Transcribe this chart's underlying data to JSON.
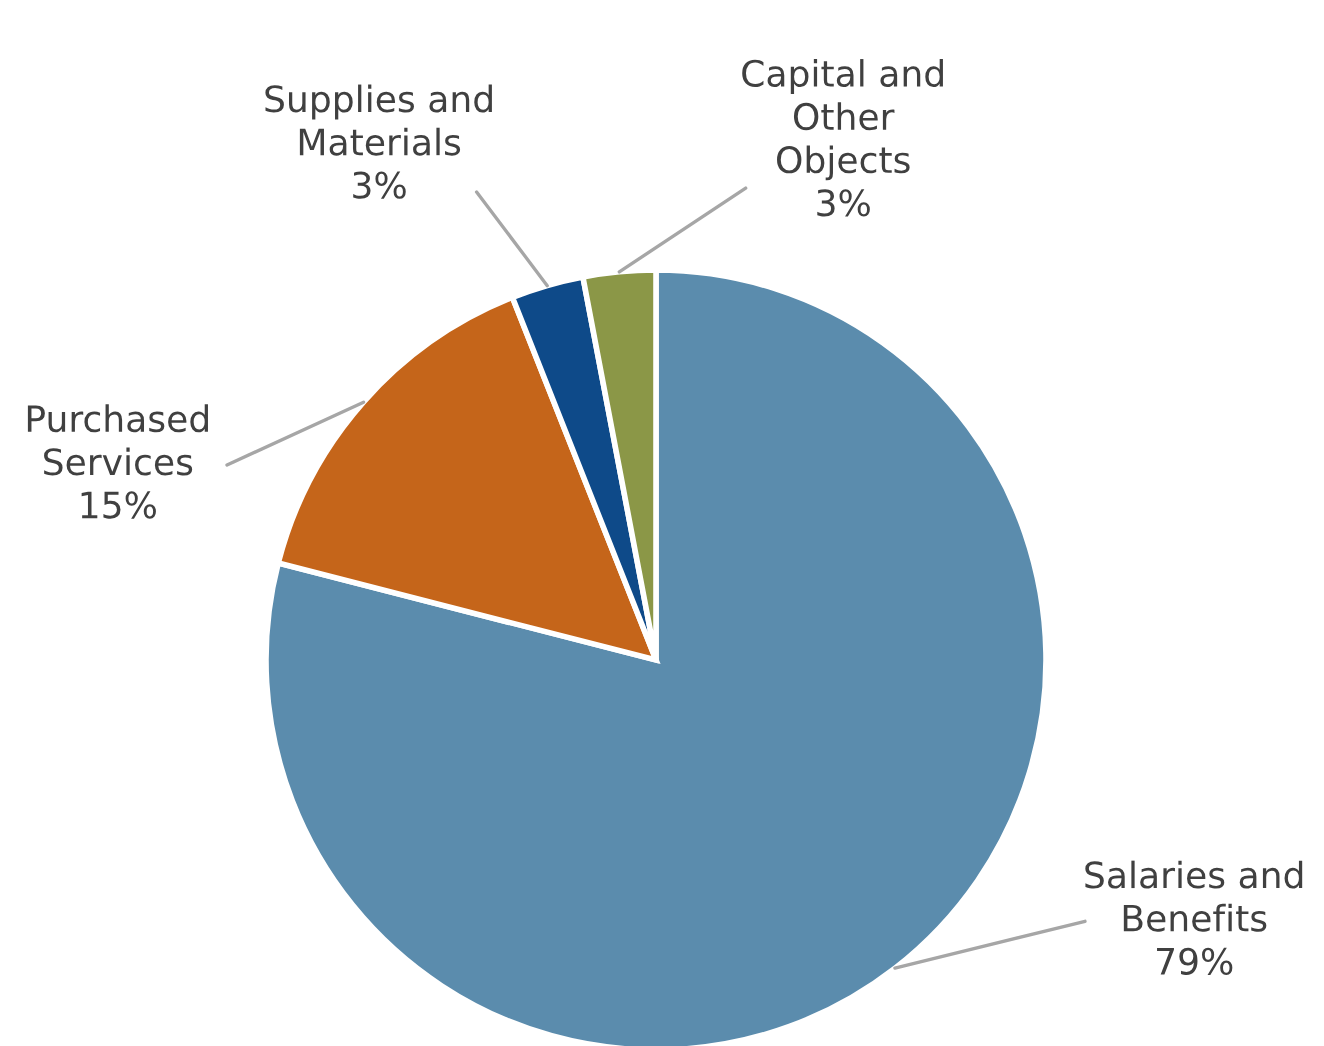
{
  "chart_data": {
    "type": "pie",
    "categories": [
      "Salaries and\nBenefits",
      "Purchased\nServices",
      "Supplies and\nMaterials",
      "Capital and\nOther\nObjects"
    ],
    "values": [
      79,
      15,
      3,
      3
    ],
    "value_labels": [
      "79%",
      "15%",
      "3%",
      "3%"
    ],
    "colors": [
      "#5b8cad",
      "#c5651a",
      "#0e4a89",
      "#8b9747"
    ]
  }
}
